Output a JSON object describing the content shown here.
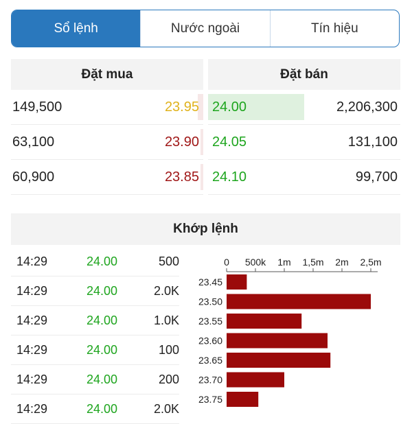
{
  "tabs": [
    {
      "label": "Sổ lệnh",
      "active": true
    },
    {
      "label": "Nước ngoài",
      "active": false
    },
    {
      "label": "Tín hiệu",
      "active": false
    }
  ],
  "order_book": {
    "buy_header": "Đặt mua",
    "sell_header": "Đặt bán",
    "rows": [
      {
        "buy_volume": "149,500",
        "buy_price": "23.95",
        "buy_color": "#e0b21c",
        "sell_price": "24.00",
        "sell_color": "#1ea51e",
        "sell_volume": "2,206,300"
      },
      {
        "buy_volume": "63,100",
        "buy_price": "23.90",
        "buy_color": "#a01818",
        "sell_price": "24.05",
        "sell_color": "#1ea51e",
        "sell_volume": "131,100"
      },
      {
        "buy_volume": "60,900",
        "buy_price": "23.85",
        "buy_color": "#a01818",
        "sell_price": "24.10",
        "sell_color": "#1ea51e",
        "sell_volume": "99,700"
      }
    ]
  },
  "matched": {
    "header": "Khớp lệnh",
    "rows": [
      {
        "time": "14:29",
        "price": "24.00",
        "volume": "500"
      },
      {
        "time": "14:29",
        "price": "24.00",
        "volume": "2.0K"
      },
      {
        "time": "14:29",
        "price": "24.00",
        "volume": "1.0K"
      },
      {
        "time": "14:29",
        "price": "24.00",
        "volume": "100"
      },
      {
        "time": "14:29",
        "price": "24.00",
        "volume": "200"
      },
      {
        "time": "14:29",
        "price": "24.00",
        "volume": "2.0K"
      }
    ]
  },
  "chart_data": {
    "type": "bar",
    "orientation": "horizontal",
    "categories": [
      "23.45",
      "23.50",
      "23.55",
      "23.60",
      "23.65",
      "23.70",
      "23.75"
    ],
    "values": [
      350000,
      2500000,
      1300000,
      1750000,
      1800000,
      1000000,
      550000
    ],
    "xlim": [
      0,
      2500000
    ],
    "xticks": [
      0,
      500000,
      1000000,
      1500000,
      2000000,
      2500000
    ],
    "xtick_labels": [
      "0",
      "500k",
      "1m",
      "1,5m",
      "2m",
      "2,5m"
    ],
    "bar_color": "#9b0a0a",
    "title": "",
    "xlabel": "",
    "ylabel": ""
  }
}
